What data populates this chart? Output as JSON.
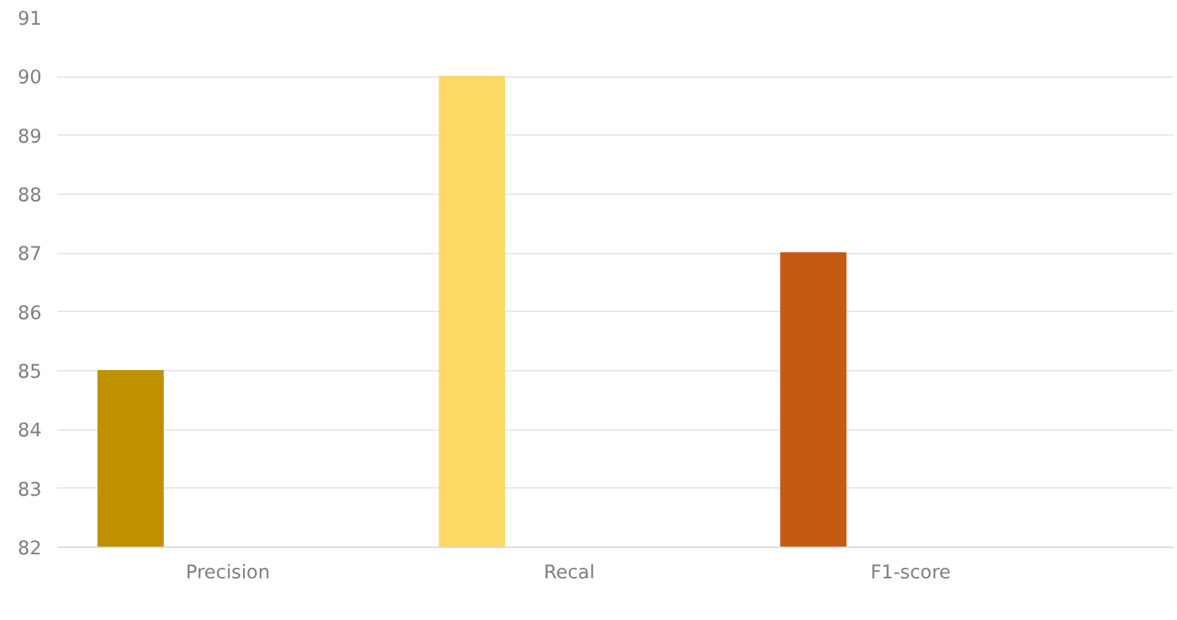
{
  "chart_data": {
    "type": "bar",
    "categories": [
      "Precision",
      "Recal",
      "F1-score"
    ],
    "values": [
      85,
      90,
      87
    ],
    "colors": [
      "#bf9000",
      "#ffd966",
      "#c55a11"
    ],
    "ylim": [
      82,
      91
    ],
    "yticks": [
      82,
      83,
      84,
      85,
      86,
      87,
      88,
      89,
      90,
      91
    ],
    "grid": "y"
  }
}
